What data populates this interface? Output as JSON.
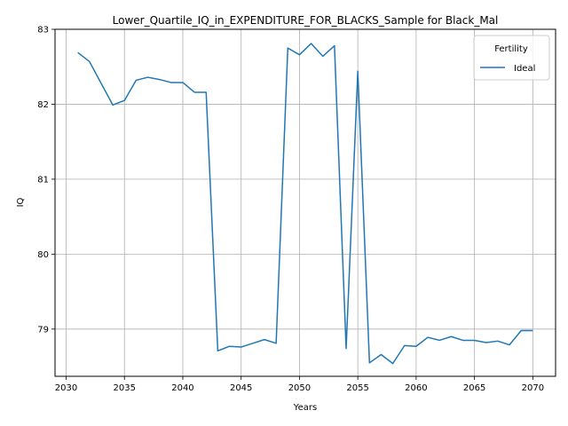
{
  "chart_data": {
    "type": "line",
    "title": "Lower_Quartile_IQ_in_EXPENDITURE_FOR_BLACKS_Sample for Black_Mal",
    "xlabel": "Years",
    "ylabel": "IQ",
    "xlim": [
      2029.05,
      2071.95
    ],
    "ylim": [
      78.37,
      83.0
    ],
    "xticks": [
      2030,
      2035,
      2040,
      2045,
      2050,
      2055,
      2060,
      2065,
      2070
    ],
    "yticks": [
      79,
      80,
      81,
      82,
      83
    ],
    "grid": true,
    "legend": {
      "title": "Fertility",
      "placement": "top-right"
    },
    "series": [
      {
        "name": "Ideal",
        "color": "#1f77b4",
        "x": [
          2031,
          2032,
          2033,
          2034,
          2035,
          2036,
          2037,
          2038,
          2039,
          2040,
          2041,
          2042,
          2043,
          2044,
          2045,
          2046,
          2047,
          2048,
          2049,
          2050,
          2051,
          2052,
          2053,
          2054,
          2055,
          2056,
          2057,
          2058,
          2059,
          2060,
          2061,
          2062,
          2063,
          2064,
          2065,
          2066,
          2067,
          2068,
          2069,
          2070
        ],
        "y": [
          82.69,
          82.57,
          82.28,
          81.99,
          82.05,
          82.32,
          82.36,
          82.33,
          82.29,
          82.29,
          82.16,
          82.16,
          78.71,
          78.77,
          78.76,
          78.81,
          78.86,
          78.81,
          82.75,
          82.66,
          82.81,
          82.64,
          82.78,
          78.74,
          82.44,
          78.55,
          78.66,
          78.54,
          78.78,
          78.77,
          78.89,
          78.85,
          78.9,
          78.85,
          78.85,
          78.82,
          78.84,
          78.79,
          78.98,
          78.98
        ]
      }
    ]
  }
}
